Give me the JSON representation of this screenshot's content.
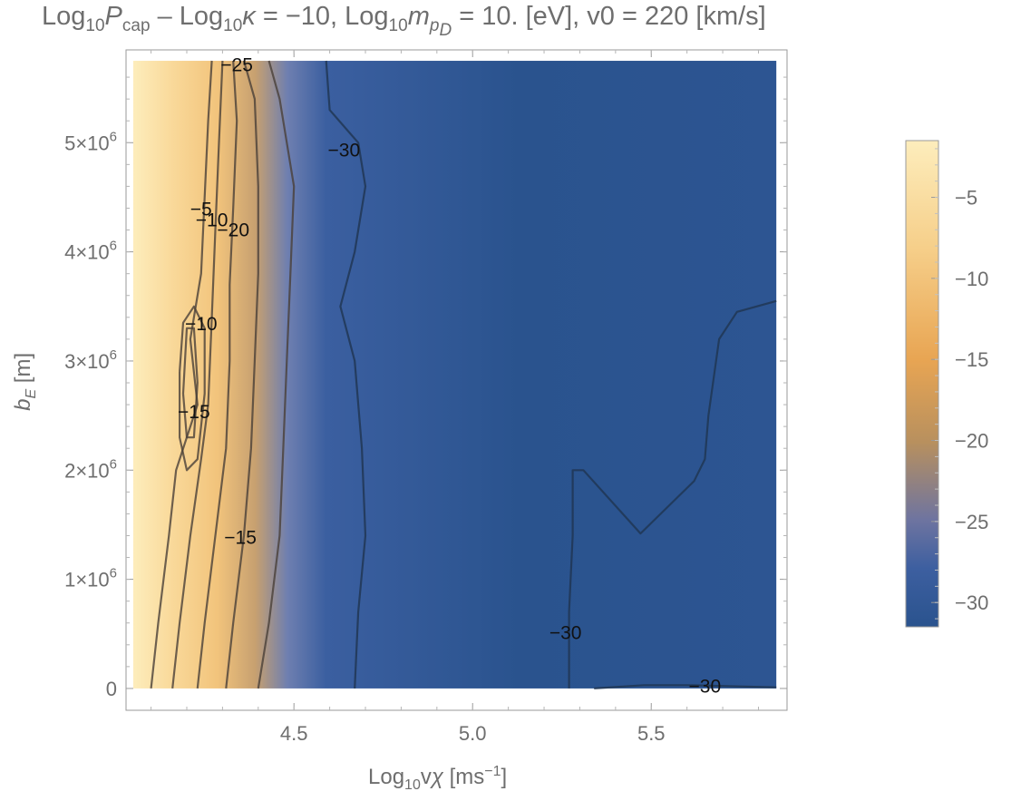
{
  "chart_data": {
    "type": "heatmap",
    "title_parts": {
      "t1": "Log",
      "t1_sub": "10",
      "t2": "P",
      "t2_sub": "cap",
      "t3": " – Log",
      "t3_sub": "10",
      "t4": "κ",
      "t5": " = −10, Log",
      "t5_sub": "10",
      "t6": "m",
      "t6_sub": "p",
      "t6_subsub": "D",
      "t7": " = 10. [eV], v0 = 220 [km/s]"
    },
    "xlabel_parts": {
      "a": "Log",
      "a_sub": "10",
      "b": "v",
      "c": "χ",
      "d": " [ms",
      "d_sup": "−1",
      "e": "]"
    },
    "ylabel_parts": {
      "a": "b",
      "a_sub": "E",
      "b": " [m]"
    },
    "xlim": [
      4.03,
      5.88
    ],
    "ylim": [
      -200000,
      5850000
    ],
    "x_ticks": [
      {
        "value": 4.5,
        "label": "4.5"
      },
      {
        "value": 5.0,
        "label": "5.0"
      },
      {
        "value": 5.5,
        "label": "5.5"
      }
    ],
    "y_ticks": [
      {
        "value": 0,
        "label": "0"
      },
      {
        "value": 1000000,
        "label": "1×10",
        "exp": "6"
      },
      {
        "value": 2000000,
        "label": "2×10",
        "exp": "6"
      },
      {
        "value": 3000000,
        "label": "3×10",
        "exp": "6"
      },
      {
        "value": 4000000,
        "label": "4×10",
        "exp": "6"
      },
      {
        "value": 5000000,
        "label": "5×10",
        "exp": "6"
      }
    ],
    "data_extent": {
      "x": [
        4.05,
        5.85
      ],
      "y": [
        0,
        5750000
      ]
    },
    "colorbar": {
      "range": [
        -31.5,
        -1.5
      ],
      "ticks": [
        {
          "value": -5,
          "label": "−5"
        },
        {
          "value": -10,
          "label": "−10"
        },
        {
          "value": -15,
          "label": "−15"
        },
        {
          "value": -20,
          "label": "−20"
        },
        {
          "value": -25,
          "label": "−25"
        },
        {
          "value": -30,
          "label": "−30"
        }
      ],
      "stops": [
        {
          "value": -1.5,
          "color": "#fdedbc"
        },
        {
          "value": -8,
          "color": "#f6cf8a"
        },
        {
          "value": -15,
          "color": "#e8a553"
        },
        {
          "value": -20,
          "color": "#b8905e"
        },
        {
          "value": -25,
          "color": "#6e74a0"
        },
        {
          "value": -28,
          "color": "#3d5fa0"
        },
        {
          "value": -31.5,
          "color": "#2a538e"
        }
      ]
    },
    "contours": [
      {
        "level": -5,
        "points": [
          [
            4.1,
            0
          ],
          [
            4.12,
            600000
          ],
          [
            4.15,
            1400000
          ],
          [
            4.17,
            2000000
          ],
          [
            4.2,
            2300000
          ],
          [
            4.23,
            2600000
          ],
          [
            4.21,
            3200000
          ],
          [
            4.24,
            3800000
          ],
          [
            4.25,
            4500000
          ],
          [
            4.26,
            5200000
          ],
          [
            4.27,
            5750000
          ]
        ]
      },
      {
        "level": -10,
        "points": [
          [
            4.16,
            0
          ],
          [
            4.18,
            600000
          ],
          [
            4.21,
            1400000
          ],
          [
            4.24,
            2100000
          ],
          [
            4.26,
            2600000
          ],
          [
            4.27,
            3400000
          ],
          [
            4.28,
            4200000
          ],
          [
            4.29,
            5000000
          ],
          [
            4.3,
            5750000
          ]
        ]
      },
      {
        "level": -15,
        "points": [
          [
            4.23,
            0
          ],
          [
            4.25,
            600000
          ],
          [
            4.28,
            1400000
          ],
          [
            4.31,
            2200000
          ],
          [
            4.32,
            3000000
          ],
          [
            4.32,
            3700000
          ],
          [
            4.33,
            4400000
          ],
          [
            4.34,
            5200000
          ],
          [
            4.33,
            5750000
          ]
        ]
      },
      {
        "level": -20,
        "points": [
          [
            4.31,
            0
          ],
          [
            4.33,
            600000
          ],
          [
            4.36,
            1400000
          ],
          [
            4.38,
            2200000
          ],
          [
            4.39,
            3000000
          ],
          [
            4.4,
            3800000
          ],
          [
            4.4,
            4600000
          ],
          [
            4.39,
            5400000
          ],
          [
            4.36,
            5750000
          ]
        ]
      },
      {
        "level": -25,
        "points": [
          [
            4.4,
            0
          ],
          [
            4.43,
            600000
          ],
          [
            4.46,
            1400000
          ],
          [
            4.47,
            2200000
          ],
          [
            4.48,
            3000000
          ],
          [
            4.49,
            3800000
          ],
          [
            4.5,
            4600000
          ],
          [
            4.46,
            5400000
          ],
          [
            4.43,
            5750000
          ]
        ]
      },
      {
        "level": -10,
        "points": [
          [
            4.18,
            2900000
          ],
          [
            4.19,
            3350000
          ],
          [
            4.22,
            3500000
          ],
          [
            4.25,
            3300000
          ],
          [
            4.25,
            2700000
          ],
          [
            4.23,
            2100000
          ],
          [
            4.2,
            2000000
          ],
          [
            4.18,
            2300000
          ],
          [
            4.18,
            2900000
          ]
        ]
      },
      {
        "level": -15,
        "points": [
          [
            4.19,
            2700000
          ],
          [
            4.2,
            3300000
          ],
          [
            4.22,
            3300000
          ],
          [
            4.23,
            2800000
          ],
          [
            4.22,
            2300000
          ],
          [
            4.2,
            2300000
          ],
          [
            4.19,
            2700000
          ]
        ]
      },
      {
        "level": -30,
        "points": [
          [
            4.67,
            0
          ],
          [
            4.68,
            700000
          ],
          [
            4.7,
            1400000
          ],
          [
            4.69,
            2200000
          ],
          [
            4.67,
            3000000
          ],
          [
            4.63,
            3500000
          ],
          [
            4.67,
            4000000
          ],
          [
            4.7,
            4600000
          ],
          [
            4.68,
            5000000
          ],
          [
            4.6,
            5300000
          ],
          [
            4.59,
            5750000
          ]
        ]
      },
      {
        "level": -30,
        "points": [
          [
            5.27,
            0
          ],
          [
            5.27,
            700000
          ],
          [
            5.28,
            1400000
          ],
          [
            5.28,
            2000000
          ],
          [
            5.31,
            2000000
          ],
          [
            5.47,
            1420000
          ],
          [
            5.62,
            1900000
          ],
          [
            5.65,
            2100000
          ],
          [
            5.66,
            2500000
          ],
          [
            5.69,
            3200000
          ],
          [
            5.74,
            3450000
          ],
          [
            5.85,
            3550000
          ]
        ]
      },
      {
        "level": -30,
        "points": [
          [
            5.34,
            0
          ],
          [
            5.48,
            30000
          ],
          [
            5.6,
            30000
          ],
          [
            5.85,
            10000
          ]
        ]
      }
    ],
    "contour_labels": [
      {
        "text": "−25",
        "x": 4.34,
        "y": 5700000
      },
      {
        "text": "−30",
        "x": 4.64,
        "y": 4920000
      },
      {
        "text": "−5",
        "x": 4.24,
        "y": 4380000
      },
      {
        "text": "−10",
        "x": 4.27,
        "y": 4280000
      },
      {
        "text": "−20",
        "x": 4.33,
        "y": 4190000
      },
      {
        "text": "−10",
        "x": 4.24,
        "y": 3330000
      },
      {
        "text": "−15",
        "x": 4.22,
        "y": 2520000
      },
      {
        "text": "−15",
        "x": 4.35,
        "y": 1370000
      },
      {
        "text": "−30",
        "x": 5.26,
        "y": 500000
      },
      {
        "text": "−30",
        "x": 5.65,
        "y": 10000
      }
    ]
  }
}
